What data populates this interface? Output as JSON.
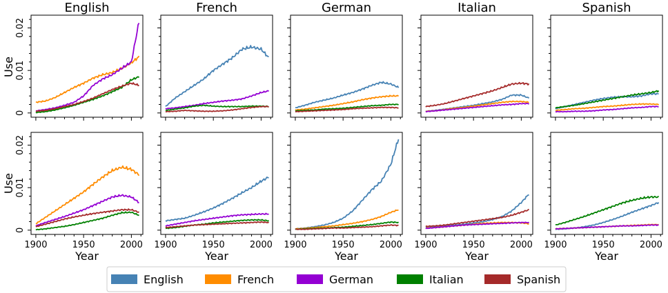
{
  "chart_data": {
    "type": "line",
    "column_titles": [
      "English",
      "French",
      "German",
      "Italian",
      "Spanish"
    ],
    "xlabel": "Year",
    "ylabel": "Use",
    "xlim": [
      1895,
      2012
    ],
    "ylim": [
      -0.001,
      0.023
    ],
    "xticks": [
      1900,
      1950,
      2000
    ],
    "xtick_labels": [
      "1900",
      "1950",
      "2000"
    ],
    "yticks": [
      0,
      0.01,
      0.02
    ],
    "ytick_labels": [
      "0",
      "0.01",
      "0.02"
    ],
    "legend": {
      "placement": "bottom-center",
      "entries": [
        {
          "name": "English",
          "color": "#4682b4"
        },
        {
          "name": "French",
          "color": "#ff8c00"
        },
        {
          "name": "German",
          "color": "#9400d3"
        },
        {
          "name": "Italian",
          "color": "#008000"
        },
        {
          "name": "Spanish",
          "color": "#a52a2a"
        }
      ]
    },
    "x": [
      1900,
      1910,
      1920,
      1930,
      1940,
      1950,
      1960,
      1970,
      1980,
      1990,
      2000,
      2008
    ],
    "panels": [
      {
        "row": 0,
        "col": 0,
        "series": [
          {
            "name": "English",
            "values": []
          },
          {
            "name": "French",
            "values": [
              0.0025,
              0.0028,
              0.0036,
              0.0048,
              0.006,
              0.007,
              0.0082,
              0.009,
              0.0095,
              0.0105,
              0.0118,
              0.0132
            ]
          },
          {
            "name": "German",
            "values": [
              0.0005,
              0.0008,
              0.0012,
              0.0018,
              0.0025,
              0.004,
              0.0065,
              0.008,
              0.009,
              0.0105,
              0.012,
              0.0215
            ]
          },
          {
            "name": "Italian",
            "values": [
              0.0001,
              0.0003,
              0.0007,
              0.0012,
              0.0018,
              0.0025,
              0.0032,
              0.004,
              0.005,
              0.006,
              0.0078,
              0.0085
            ]
          },
          {
            "name": "Spanish",
            "values": [
              0.0004,
              0.0006,
              0.001,
              0.0015,
              0.002,
              0.0027,
              0.0035,
              0.0045,
              0.0055,
              0.0063,
              0.007,
              0.0065
            ]
          }
        ]
      },
      {
        "row": 0,
        "col": 1,
        "series": [
          {
            "name": "English",
            "values": [
              0.0015,
              0.0035,
              0.005,
              0.0065,
              0.008,
              0.01,
              0.0115,
              0.013,
              0.015,
              0.0155,
              0.015,
              0.013
            ]
          },
          {
            "name": "French",
            "values": []
          },
          {
            "name": "German",
            "values": [
              0.001,
              0.0012,
              0.0015,
              0.0018,
              0.0022,
              0.0025,
              0.0028,
              0.003,
              0.0033,
              0.004,
              0.0048,
              0.0052
            ]
          },
          {
            "name": "Italian",
            "values": [
              0.0006,
              0.0009,
              0.0012,
              0.0016,
              0.0018,
              0.0016,
              0.0015,
              0.0015,
              0.0015,
              0.0016,
              0.0016,
              0.0015
            ]
          },
          {
            "name": "Spanish",
            "values": [
              0.0003,
              0.0004,
              0.0006,
              0.0005,
              0.0004,
              0.0004,
              0.0005,
              0.0007,
              0.001,
              0.0013,
              0.0015,
              0.0015
            ]
          }
        ]
      },
      {
        "row": 0,
        "col": 2,
        "series": [
          {
            "name": "English",
            "values": [
              0.0012,
              0.0018,
              0.0025,
              0.003,
              0.0035,
              0.0042,
              0.0048,
              0.0056,
              0.0065,
              0.0072,
              0.0068,
              0.006
            ]
          },
          {
            "name": "French",
            "values": [
              0.0007,
              0.0009,
              0.0012,
              0.0015,
              0.0018,
              0.0022,
              0.0026,
              0.0031,
              0.0035,
              0.0038,
              0.004,
              0.004
            ]
          },
          {
            "name": "German",
            "values": []
          },
          {
            "name": "Italian",
            "values": [
              0.0005,
              0.0006,
              0.0007,
              0.0009,
              0.001,
              0.0011,
              0.0013,
              0.0015,
              0.0017,
              0.0018,
              0.002,
              0.002
            ]
          },
          {
            "name": "Spanish",
            "values": [
              0.0003,
              0.0004,
              0.0005,
              0.0006,
              0.0007,
              0.0008,
              0.001,
              0.0011,
              0.0012,
              0.0013,
              0.0013,
              0.0012
            ]
          }
        ]
      },
      {
        "row": 0,
        "col": 3,
        "series": [
          {
            "name": "English",
            "values": [
              0.0004,
              0.0006,
              0.0009,
              0.0012,
              0.0015,
              0.0018,
              0.0022,
              0.0026,
              0.0032,
              0.0042,
              0.0042,
              0.0035
            ]
          },
          {
            "name": "French",
            "values": [
              0.0004,
              0.0005,
              0.0008,
              0.0011,
              0.0013,
              0.0016,
              0.0019,
              0.0022,
              0.0025,
              0.0027,
              0.0027,
              0.0025
            ]
          },
          {
            "name": "German",
            "values": [
              0.0003,
              0.0005,
              0.0007,
              0.0009,
              0.0011,
              0.0013,
              0.0015,
              0.0017,
              0.0019,
              0.002,
              0.0022,
              0.0022
            ]
          },
          {
            "name": "Italian",
            "values": []
          },
          {
            "name": "Spanish",
            "values": [
              0.0015,
              0.0018,
              0.0022,
              0.0028,
              0.0034,
              0.004,
              0.0046,
              0.0052,
              0.006,
              0.0068,
              0.007,
              0.0068
            ]
          }
        ]
      },
      {
        "row": 0,
        "col": 4,
        "series": [
          {
            "name": "English",
            "values": [
              0.001,
              0.0015,
              0.002,
              0.0025,
              0.003,
              0.0034,
              0.0037,
              0.0038,
              0.0038,
              0.004,
              0.0045,
              0.0045
            ]
          },
          {
            "name": "French",
            "values": [
              0.0006,
              0.0008,
              0.001,
              0.0011,
              0.0013,
              0.0015,
              0.0016,
              0.0018,
              0.002,
              0.0021,
              0.0021,
              0.002
            ]
          },
          {
            "name": "German",
            "values": [
              0.0003,
              0.0003,
              0.0004,
              0.0004,
              0.0005,
              0.0007,
              0.0008,
              0.001,
              0.0012,
              0.0013,
              0.0015,
              0.0015
            ]
          },
          {
            "name": "Italian",
            "values": [
              0.0012,
              0.0015,
              0.0018,
              0.0022,
              0.0026,
              0.003,
              0.0034,
              0.0038,
              0.0042,
              0.0045,
              0.0048,
              0.0052
            ]
          },
          {
            "name": "Spanish",
            "values": []
          }
        ]
      },
      {
        "row": 1,
        "col": 0,
        "series": [
          {
            "name": "English",
            "values": []
          },
          {
            "name": "French",
            "values": [
              0.0015,
              0.003,
              0.0045,
              0.006,
              0.0075,
              0.009,
              0.0108,
              0.0125,
              0.014,
              0.0148,
              0.0143,
              0.013
            ]
          },
          {
            "name": "German",
            "values": [
              0.001,
              0.0018,
              0.0025,
              0.0032,
              0.004,
              0.0048,
              0.0058,
              0.0068,
              0.0078,
              0.0082,
              0.0078,
              0.0065
            ]
          },
          {
            "name": "Italian",
            "values": [
              0.0001,
              0.0003,
              0.0006,
              0.0009,
              0.0013,
              0.0018,
              0.0023,
              0.0028,
              0.0035,
              0.0041,
              0.0042,
              0.0035
            ]
          },
          {
            "name": "Spanish",
            "values": [
              0.0008,
              0.0014,
              0.002,
              0.0026,
              0.0031,
              0.0035,
              0.0039,
              0.0042,
              0.0045,
              0.0048,
              0.0048,
              0.0042
            ]
          }
        ]
      },
      {
        "row": 1,
        "col": 1,
        "series": [
          {
            "name": "English",
            "values": [
              0.0022,
              0.0025,
              0.0028,
              0.0035,
              0.0043,
              0.0052,
              0.0063,
              0.0075,
              0.0088,
              0.01,
              0.0115,
              0.0125
            ]
          },
          {
            "name": "French",
            "values": []
          },
          {
            "name": "German",
            "values": [
              0.001,
              0.0014,
              0.0018,
              0.0022,
              0.0025,
              0.0028,
              0.0031,
              0.0034,
              0.0036,
              0.0037,
              0.0038,
              0.0038
            ]
          },
          {
            "name": "Italian",
            "values": [
              0.0004,
              0.0006,
              0.0009,
              0.0012,
              0.0014,
              0.0017,
              0.0019,
              0.0021,
              0.0023,
              0.0024,
              0.0024,
              0.0022
            ]
          },
          {
            "name": "Spanish",
            "values": [
              0.0006,
              0.0008,
              0.001,
              0.0012,
              0.0013,
              0.0014,
              0.0015,
              0.0016,
              0.0017,
              0.0018,
              0.0019,
              0.0018
            ]
          }
        ]
      },
      {
        "row": 1,
        "col": 2,
        "series": [
          {
            "name": "English",
            "values": [
              0.0003,
              0.0005,
              0.0008,
              0.0012,
              0.0018,
              0.0028,
              0.0045,
              0.007,
              0.0095,
              0.0115,
              0.0155,
              0.0215
            ]
          },
          {
            "name": "French",
            "values": [
              0.0003,
              0.0004,
              0.0006,
              0.0008,
              0.001,
              0.0013,
              0.0016,
              0.002,
              0.0025,
              0.0032,
              0.0042,
              0.0048
            ]
          },
          {
            "name": "German",
            "values": []
          },
          {
            "name": "Italian",
            "values": [
              0.0002,
              0.0003,
              0.0004,
              0.0005,
              0.0006,
              0.0007,
              0.0009,
              0.0011,
              0.0013,
              0.0016,
              0.0019,
              0.0018
            ]
          },
          {
            "name": "Spanish",
            "values": [
              0.0002,
              0.0002,
              0.0003,
              0.0004,
              0.0005,
              0.0005,
              0.0006,
              0.0007,
              0.0008,
              0.001,
              0.0012,
              0.0011
            ]
          }
        ]
      },
      {
        "row": 1,
        "col": 3,
        "series": [
          {
            "name": "English",
            "values": [
              0.0008,
              0.0009,
              0.001,
              0.0012,
              0.0014,
              0.0017,
              0.002,
              0.0025,
              0.0032,
              0.0045,
              0.0065,
              0.0085
            ]
          },
          {
            "name": "French",
            "values": [
              0.0005,
              0.0006,
              0.0008,
              0.001,
              0.0012,
              0.0014,
              0.0016,
              0.0017,
              0.0018,
              0.0018,
              0.0017,
              0.0015
            ]
          },
          {
            "name": "German",
            "values": [
              0.0004,
              0.0006,
              0.0008,
              0.001,
              0.0012,
              0.0013,
              0.0014,
              0.0015,
              0.0016,
              0.0017,
              0.0018,
              0.0018
            ]
          },
          {
            "name": "Italian",
            "values": []
          },
          {
            "name": "Spanish",
            "values": [
              0.0009,
              0.001,
              0.0012,
              0.0015,
              0.0018,
              0.0021,
              0.0024,
              0.0027,
              0.003,
              0.0035,
              0.0042,
              0.0048
            ]
          }
        ]
      },
      {
        "row": 1,
        "col": 4,
        "series": [
          {
            "name": "English",
            "values": [
              0.0002,
              0.0003,
              0.0005,
              0.0008,
              0.0012,
              0.0018,
              0.0025,
              0.0033,
              0.0042,
              0.005,
              0.0058,
              0.0065
            ]
          },
          {
            "name": "French",
            "values": [
              0.0003,
              0.0004,
              0.0005,
              0.0006,
              0.0007,
              0.0008,
              0.0009,
              0.001,
              0.0011,
              0.0012,
              0.0013,
              0.0013
            ]
          },
          {
            "name": "German",
            "values": [
              0.0003,
              0.0004,
              0.0005,
              0.0006,
              0.0007,
              0.0008,
              0.0009,
              0.001,
              0.001,
              0.0011,
              0.0012,
              0.0012
            ]
          },
          {
            "name": "Italian",
            "values": [
              0.0012,
              0.0018,
              0.0025,
              0.0032,
              0.004,
              0.0048,
              0.0056,
              0.0064,
              0.007,
              0.0075,
              0.0078,
              0.0078
            ]
          },
          {
            "name": "Spanish",
            "values": []
          }
        ]
      }
    ]
  }
}
